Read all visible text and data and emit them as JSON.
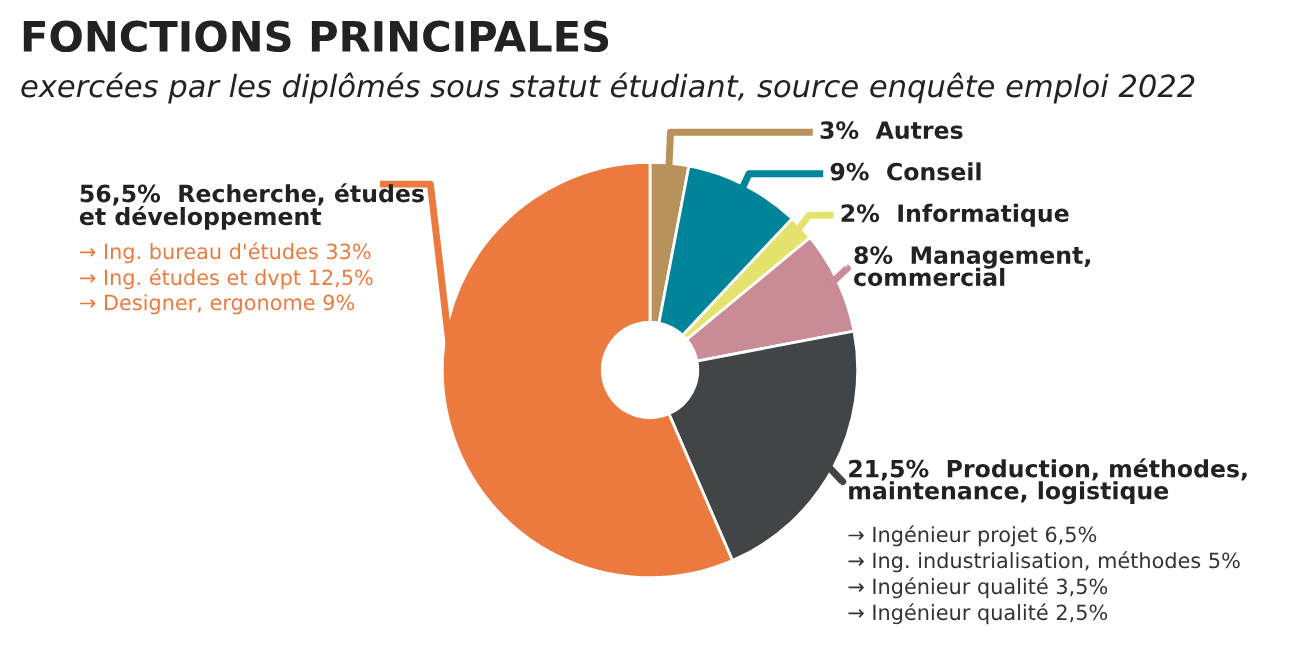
{
  "chart_data": {
    "type": "donut",
    "title": "FONCTIONS PRINCIPALES",
    "subtitle": "exercées par les diplômés sous statut étudiant, source enquête emploi 2022",
    "categories": [
      "Autres",
      "Conseil",
      "Informatique",
      "Management,\ncommercial",
      "Production, méthodes,\nmaintenance, logistique",
      "Recherche, études\net développement"
    ],
    "values": [
      3,
      9,
      2,
      8,
      21.5,
      56.5
    ],
    "value_labels": [
      "3%",
      "9%",
      "2%",
      "8%",
      "21,5%",
      "56,5%"
    ],
    "colors": [
      "#b8925a",
      "#00849a",
      "#e3e36e",
      "#c98b96",
      "#424547",
      "#ec7a3e"
    ],
    "annotations": [
      {
        "text": "→ Ing. bureau d'études 33%",
        "x": "Recherche, études\net développement"
      },
      {
        "text": "→ Ing. études et dvpt 12,5%",
        "x": "Recherche, études\net développement"
      },
      {
        "text": "→ Designer, ergonome 9%",
        "x": "Recherche, études\net développement"
      },
      {
        "text": "→ Ingénieur projet 6,5%",
        "x": "Production, méthodes,\nmaintenance, logistique"
      },
      {
        "text": "→ Ing. industrialisation, méthodes 5%",
        "x": "Production, méthodes,\nmaintenance, logistique"
      },
      {
        "text": "→ Ingénieur qualité 3,5%",
        "x": "Production, méthodes,\nmaintenance, logistique"
      },
      {
        "text": "→ Ingénieur qualité 2,5%",
        "x": "Production, méthodes,\nmaintenance, logistique"
      }
    ]
  }
}
